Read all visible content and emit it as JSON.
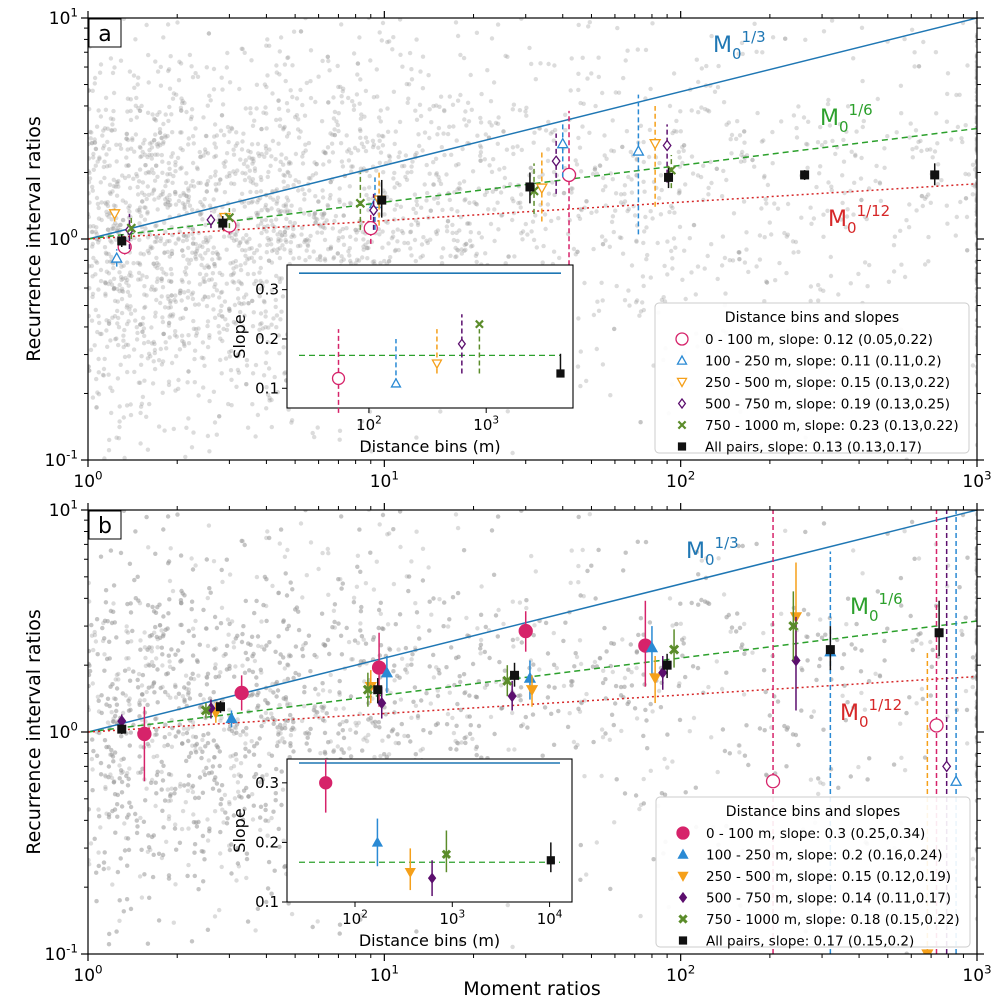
{
  "colors": {
    "bin0": "#d6236a",
    "bin1": "#2a8ad4",
    "bin2": "#f5a01a",
    "bin3": "#5c0f6e",
    "bin4": "#5b8c2a",
    "all": "#111111",
    "m13": "#1f77b4",
    "m16": "#2ca02c",
    "m112": "#d62728",
    "cloud": "#9a9a9a"
  },
  "shared": {
    "ylabel": "Recurrence interval ratios",
    "xlabel": "Moment ratios",
    "x_ticks": [
      "10^0",
      "10^1",
      "10^2",
      "10^3"
    ],
    "y_ticks": [
      "10^-1",
      "10^0",
      "10^1"
    ],
    "inset_xlabel": "Distance bins (m)",
    "inset_ylabel": "Slope",
    "legend_title": "Distance bins and slopes",
    "ref_lines": [
      {
        "base": "M",
        "sub": "0",
        "sup": "1/3",
        "exponent": 0.3333,
        "style": "solid",
        "color_key": "m13"
      },
      {
        "base": "M",
        "sub": "0",
        "sup": "1/6",
        "exponent": 0.1667,
        "style": "dashed",
        "color_key": "m16"
      },
      {
        "base": "M",
        "sub": "0",
        "sup": "1/12",
        "exponent": 0.0833,
        "style": "dotted",
        "color_key": "m112"
      }
    ]
  },
  "chart_data": [
    {
      "panel": "a",
      "type": "scatter",
      "xscale": "log",
      "yscale": "log",
      "xlim": [
        1,
        1000
      ],
      "ylim": [
        0.1,
        10
      ],
      "filled_markers": false,
      "scatter_cloud": "gray background points (individual pairs)",
      "series": [
        {
          "name": "0 - 100 m, slope: 0.12 (0.05,0.22)",
          "marker": "circle",
          "color_key": "bin0",
          "points": [
            [
              1.33,
              0.92,
              0.85,
              1.0
            ],
            [
              3.0,
              1.15,
              1.05,
              1.28
            ],
            [
              9.0,
              1.12,
              0.95,
              1.3
            ],
            [
              42,
              1.95,
              0.7,
              3.8
            ]
          ]
        },
        {
          "name": "100 - 250 m, slope: 0.11 (0.11,0.2)",
          "marker": "triangle-up",
          "color_key": "bin1",
          "points": [
            [
              1.25,
              0.82,
              0.75,
              0.9
            ],
            [
              9.3,
              1.45,
              1.1,
              1.9
            ],
            [
              40,
              2.7,
              1.9,
              3.4
            ],
            [
              72,
              2.5,
              1.05,
              4.5
            ]
          ]
        },
        {
          "name": "250 - 500 m, slope: 0.15 (0.13,0.22)",
          "marker": "triangle-down",
          "color_key": "bin2",
          "points": [
            [
              1.23,
              1.3,
              1.2,
              1.4
            ],
            [
              2.9,
              1.25,
              1.15,
              1.35
            ],
            [
              9.6,
              1.5,
              1.15,
              2.0
            ],
            [
              34,
              1.7,
              1.2,
              2.5
            ],
            [
              82,
              2.7,
              1.4,
              4.0
            ]
          ]
        },
        {
          "name": "500 - 750 m, slope: 0.19 (0.13,0.25)",
          "marker": "diamond",
          "color_key": "bin3",
          "points": [
            [
              1.38,
              1.1,
              0.9,
              1.3
            ],
            [
              2.6,
              1.22,
              1.12,
              1.33
            ],
            [
              9.2,
              1.35,
              1.1,
              1.6
            ],
            [
              38,
              2.25,
              1.6,
              3.0
            ],
            [
              90,
              2.65,
              1.8,
              3.3
            ]
          ]
        },
        {
          "name": "750 - 1000 m, slope: 0.23 (0.13,0.22)",
          "marker": "x",
          "color_key": "bin4",
          "points": [
            [
              1.4,
              1.12,
              1.0,
              1.25
            ],
            [
              3.0,
              1.25,
              1.12,
              1.38
            ],
            [
              8.3,
              1.45,
              1.1,
              2.0
            ],
            [
              32,
              1.65,
              1.3,
              2.2
            ],
            [
              93,
              2.05,
              1.7,
              2.4
            ]
          ]
        },
        {
          "name": "All pairs, slope: 0.13 (0.13,0.17)",
          "marker": "square",
          "color_key": "all",
          "points": [
            [
              1.3,
              0.98,
              0.92,
              1.05
            ],
            [
              2.85,
              1.18,
              1.1,
              1.27
            ],
            [
              9.8,
              1.5,
              1.25,
              1.85
            ],
            [
              31,
              1.72,
              1.45,
              2.0
            ],
            [
              91,
              1.9,
              1.7,
              2.1
            ],
            [
              262,
              1.95,
              1.85,
              2.05
            ],
            [
              720,
              1.95,
              1.75,
              2.2
            ]
          ]
        }
      ],
      "inset": {
        "xlim": [
          20,
          5500
        ],
        "ylim": [
          0.06,
          0.35
        ],
        "x_ticks": [
          "10^2",
          "10^3"
        ],
        "y_ticks": [
          "0.1",
          "0.2",
          "0.3"
        ],
        "m13_slope": 0.3333,
        "m16_slope": 0.1667,
        "points": [
          {
            "color_key": "bin0",
            "marker": "circle",
            "x": 55,
            "y": 0.12,
            "lo": 0.05,
            "hi": 0.22
          },
          {
            "color_key": "bin1",
            "marker": "triangle-up",
            "x": 170,
            "y": 0.11,
            "lo": 0.11,
            "hi": 0.2
          },
          {
            "color_key": "bin2",
            "marker": "triangle-down",
            "x": 380,
            "y": 0.15,
            "lo": 0.13,
            "hi": 0.22
          },
          {
            "color_key": "bin3",
            "marker": "diamond",
            "x": 620,
            "y": 0.19,
            "lo": 0.13,
            "hi": 0.25
          },
          {
            "color_key": "bin4",
            "marker": "x",
            "x": 875,
            "y": 0.23,
            "lo": 0.13,
            "hi": 0.22
          },
          {
            "color_key": "all",
            "marker": "square",
            "x": 4300,
            "y": 0.13,
            "lo": 0.13,
            "hi": 0.17
          }
        ]
      }
    },
    {
      "panel": "b",
      "type": "scatter",
      "xscale": "log",
      "yscale": "log",
      "xlim": [
        1,
        1000
      ],
      "ylim": [
        0.1,
        10
      ],
      "filled_markers": true,
      "scatter_cloud": "gray background points (individual pairs)",
      "series": [
        {
          "name": "0 - 100 m, slope: 0.3 (0.25,0.34)",
          "marker": "circle",
          "color_key": "bin0",
          "points": [
            [
              1.55,
              0.98,
              0.6,
              1.3
            ],
            [
              3.3,
              1.5,
              1.25,
              1.8
            ],
            [
              9.6,
              1.95,
              1.3,
              2.8
            ],
            [
              30,
              2.85,
              2.3,
              3.5
            ],
            [
              76,
              2.45,
              1.6,
              3.9
            ]
          ],
          "outliers": [
            {
              "x": 205,
              "y": 0.6,
              "lo": 0.1,
              "hi": 10,
              "hollow": true
            },
            {
              "x": 730,
              "y": 1.07,
              "lo": 0.1,
              "hi": 10,
              "hollow": true
            }
          ]
        },
        {
          "name": "100 - 250 m, slope: 0.2 (0.16,0.24)",
          "marker": "triangle-up",
          "color_key": "bin1",
          "points": [
            [
              3.05,
              1.15,
              1.05,
              1.25
            ],
            [
              10.2,
              1.85,
              1.5,
              2.2
            ],
            [
              31,
              1.75,
              1.4,
              2.1
            ],
            [
              80,
              2.4,
              1.8,
              3.0
            ]
          ],
          "outliers": [
            {
              "x": 320,
              "y": 2.3,
              "lo": 0.1,
              "hi": 6.5,
              "hollow": false
            },
            {
              "x": 850,
              "y": 0.6,
              "lo": 0.1,
              "hi": 10,
              "hollow": true
            }
          ]
        },
        {
          "name": "250 - 500 m, slope: 0.15 (0.12,0.19)",
          "marker": "triangle-down",
          "color_key": "bin2",
          "points": [
            [
              2.7,
              1.22,
              1.1,
              1.35
            ],
            [
              9.0,
              1.6,
              1.35,
              1.9
            ],
            [
              31.5,
              1.55,
              1.3,
              1.8
            ],
            [
              82,
              1.75,
              1.35,
              2.2
            ],
            [
              245,
              3.3,
              2.2,
              5.8
            ]
          ],
          "outliers": [
            {
              "x": 680,
              "y": 0.1,
              "lo": 0.1,
              "hi": 2.3,
              "hollow": false
            }
          ]
        },
        {
          "name": "500 - 750 m, slope: 0.14 (0.11,0.17)",
          "marker": "diamond",
          "color_key": "bin3",
          "points": [
            [
              1.3,
              1.12,
              1.05,
              1.2
            ],
            [
              2.6,
              1.28,
              1.15,
              1.4
            ],
            [
              9.8,
              1.35,
              1.15,
              1.6
            ],
            [
              27,
              1.45,
              1.25,
              1.7
            ],
            [
              87,
              1.85,
              1.55,
              2.2
            ],
            [
              245,
              2.1,
              1.25,
              3.3
            ]
          ],
          "outliers": [
            {
              "x": 790,
              "y": 0.7,
              "lo": 0.1,
              "hi": 10,
              "hollow": true
            }
          ]
        },
        {
          "name": "750 - 1000 m, slope: 0.18 (0.15,0.22)",
          "marker": "x",
          "color_key": "bin4",
          "points": [
            [
              2.5,
              1.25,
              1.15,
              1.35
            ],
            [
              8.8,
              1.55,
              1.3,
              1.85
            ],
            [
              26,
              1.7,
              1.45,
              2.0
            ],
            [
              95,
              2.35,
              1.95,
              2.9
            ],
            [
              240,
              3.0,
              2.1,
              4.3
            ]
          ]
        },
        {
          "name": "All pairs, slope: 0.17 (0.15,0.2)",
          "marker": "square",
          "color_key": "all",
          "points": [
            [
              1.3,
              1.03,
              0.98,
              1.08
            ],
            [
              2.8,
              1.3,
              1.22,
              1.38
            ],
            [
              9.5,
              1.55,
              1.35,
              1.75
            ],
            [
              27.5,
              1.8,
              1.6,
              2.05
            ],
            [
              90,
              2.0,
              1.75,
              2.25
            ],
            [
              320,
              2.35,
              1.9,
              3.0
            ],
            [
              745,
              2.8,
              2.2,
              3.9
            ]
          ]
        }
      ],
      "inset": {
        "xlim": [
          20,
          17000
        ],
        "ylim": [
          0.1,
          0.34
        ],
        "x_ticks": [
          "10^2",
          "10^3",
          "10^4"
        ],
        "y_ticks": [
          "0.1",
          "0.2",
          "0.3"
        ],
        "m13_slope": 0.3333,
        "m16_slope": 0.1667,
        "points": [
          {
            "color_key": "bin0",
            "marker": "circle",
            "x": 50,
            "y": 0.3,
            "lo": 0.25,
            "hi": 0.34
          },
          {
            "color_key": "bin1",
            "marker": "triangle-up",
            "x": 170,
            "y": 0.2,
            "lo": 0.16,
            "hi": 0.24
          },
          {
            "color_key": "bin2",
            "marker": "triangle-down",
            "x": 370,
            "y": 0.15,
            "lo": 0.12,
            "hi": 0.19
          },
          {
            "color_key": "bin3",
            "marker": "diamond",
            "x": 620,
            "y": 0.14,
            "lo": 0.11,
            "hi": 0.17
          },
          {
            "color_key": "bin4",
            "marker": "x",
            "x": 870,
            "y": 0.18,
            "lo": 0.15,
            "hi": 0.22
          },
          {
            "color_key": "all",
            "marker": "square",
            "x": 10300,
            "y": 0.17,
            "lo": 0.15,
            "hi": 0.2
          }
        ]
      }
    }
  ]
}
